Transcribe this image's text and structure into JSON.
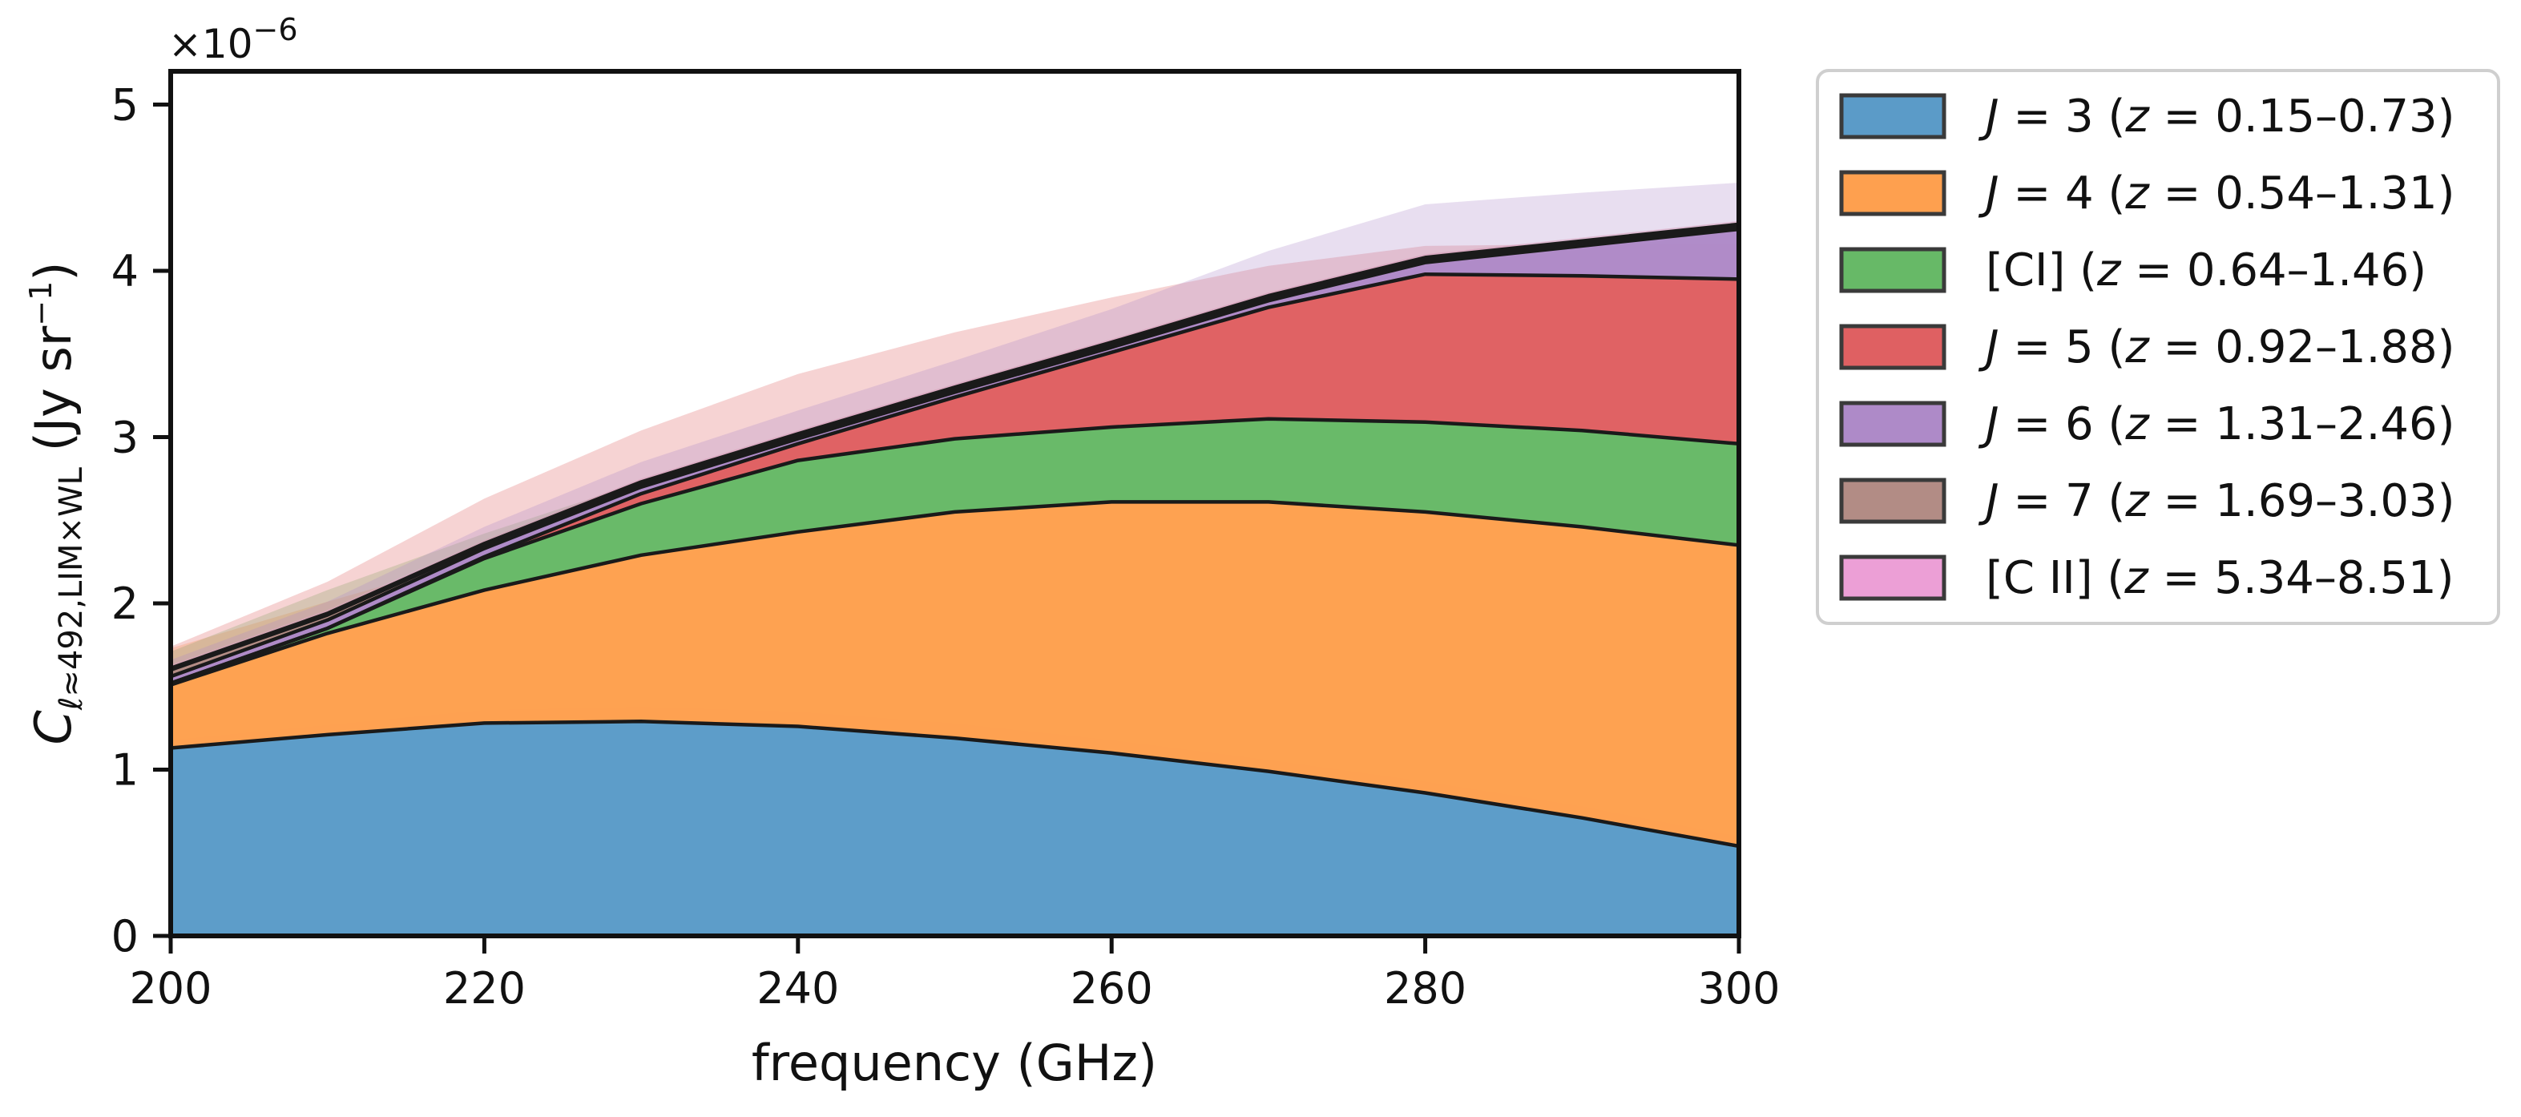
{
  "chart_data": {
    "type": "area",
    "stacked": true,
    "xlabel": "frequency (GHz)",
    "ylabel_main": "C",
    "ylabel_sub": "ℓ≈492,LIM×WL",
    "ylabel_unit_open": " (Jy sr",
    "ylabel_unit_exp": "−1",
    "ylabel_unit_close": ")",
    "sci_base": "×10",
    "sci_exp": "−6",
    "xlim": [
      200,
      300
    ],
    "ylim": [
      0,
      5.2
    ],
    "y_scale": 1e-06,
    "xticks": [
      200,
      220,
      240,
      260,
      280,
      300
    ],
    "yticks": [
      0,
      1,
      2,
      3,
      4,
      5
    ],
    "grid": false,
    "legend_position": "outside-right",
    "x": [
      200,
      210,
      220,
      230,
      240,
      250,
      260,
      270,
      280,
      290,
      300
    ],
    "series": [
      {
        "color": "#5b9bc8",
        "legend": {
          "sym": "J",
          "rest": " = 3 (",
          "zsym": "z",
          "range": " = 0.15–0.73)"
        },
        "values": [
          1.13,
          1.21,
          1.28,
          1.29,
          1.26,
          1.19,
          1.1,
          0.99,
          0.86,
          0.71,
          0.54
        ],
        "band_upper": [
          1.18,
          1.27,
          1.36,
          1.38,
          1.35,
          1.28,
          1.18,
          1.06,
          0.93,
          0.78,
          0.6
        ]
      },
      {
        "color": "#fea04f",
        "legend": {
          "sym": "J",
          "rest": " = 4 (",
          "zsym": "z",
          "range": " = 0.54–1.31)"
        },
        "values": [
          0.38,
          0.61,
          0.8,
          1.0,
          1.17,
          1.36,
          1.51,
          1.62,
          1.69,
          1.75,
          1.81
        ],
        "band_upper": [
          0.6,
          0.8,
          1.0,
          1.2,
          1.38,
          1.55,
          1.69,
          1.78,
          1.84,
          1.9,
          1.95
        ]
      },
      {
        "color": "#67b967",
        "legend": {
          "sym": "",
          "rest": "[CI] (",
          "zsym": "z",
          "range": " = 0.64–1.46)"
        },
        "values": [
          0.01,
          0.03,
          0.19,
          0.31,
          0.43,
          0.44,
          0.45,
          0.5,
          0.54,
          0.58,
          0.61
        ],
        "band_upper": [
          0.2,
          0.26,
          0.34,
          0.44,
          0.56,
          0.58,
          0.6,
          0.64,
          0.68,
          0.72,
          0.75
        ]
      },
      {
        "color": "#df6062",
        "legend": {
          "sym": "J",
          "rest": " = 5 (",
          "zsym": "z",
          "range": " = 0.92–1.88)"
        },
        "values": [
          0.0,
          0.0,
          0.01,
          0.06,
          0.1,
          0.25,
          0.45,
          0.67,
          0.89,
          0.93,
          0.99
        ],
        "band_upper": [
          0.22,
          0.28,
          0.36,
          0.44,
          0.52,
          0.64,
          0.78,
          0.92,
          1.06,
          1.12,
          1.2
        ]
      },
      {
        "color": "#ae8ac8",
        "legend": {
          "sym": "J",
          "rest": " = 6 (",
          "zsym": "z",
          "range": " = 1.31–2.46)"
        },
        "values": [
          0.04,
          0.05,
          0.05,
          0.04,
          0.03,
          0.03,
          0.03,
          0.04,
          0.07,
          0.18,
          0.3
        ],
        "band_upper": [
          0.14,
          0.16,
          0.18,
          0.19,
          0.2,
          0.22,
          0.26,
          0.34,
          0.42,
          0.5,
          0.58
        ]
      },
      {
        "color": "#b28c85",
        "legend": {
          "sym": "J",
          "rest": " = 7 (",
          "zsym": "z",
          "range": " = 1.69–3.03)"
        },
        "values": [
          0.04,
          0.03,
          0.02,
          0.02,
          0.02,
          0.02,
          0.02,
          0.02,
          0.02,
          0.02,
          0.02
        ],
        "band_upper": [
          0.05,
          0.05,
          0.05,
          0.05,
          0.05,
          0.05,
          0.05,
          0.05,
          0.05,
          0.05,
          0.05
        ]
      },
      {
        "color": "#ec9fd6",
        "legend": {
          "sym": "",
          "rest": "[C II] (",
          "zsym": "z",
          "range": " = 5.34–8.51)"
        },
        "values": [
          0.01,
          0.01,
          0.01,
          0.01,
          0.01,
          0.01,
          0.01,
          0.01,
          0.01,
          0.01,
          0.01
        ],
        "band_upper": [
          0.03,
          0.03,
          0.03,
          0.03,
          0.03,
          0.03,
          0.03,
          0.03,
          0.03,
          0.03,
          0.03
        ]
      }
    ]
  }
}
